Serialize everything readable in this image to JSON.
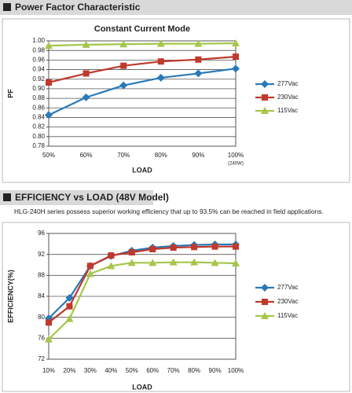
{
  "chart_data": [
    {
      "type": "line",
      "header": "Power Factor Characteristic",
      "title": "Constant Current Mode",
      "x_label": "LOAD",
      "y_label": "PF",
      "annotations": [
        "(240W)"
      ],
      "categories": [
        "50%",
        "60%",
        "70%",
        "80%",
        "90%",
        "100%"
      ],
      "series": [
        {
          "name": "277Vac",
          "color": "#2a7ab9",
          "marker": "diamond",
          "values": [
            0.845,
            0.882,
            0.907,
            0.923,
            0.932,
            0.942
          ]
        },
        {
          "name": "230Vac",
          "color": "#c0392b",
          "marker": "square",
          "values": [
            0.913,
            0.932,
            0.948,
            0.957,
            0.961,
            0.967
          ]
        },
        {
          "name": "115Vac",
          "color": "#a5c64b",
          "marker": "triangle",
          "values": [
            0.99,
            0.992,
            0.993,
            0.994,
            0.994,
            0.995
          ]
        }
      ],
      "ylim": [
        0.78,
        1.0
      ],
      "yticks": [
        {
          "value": 0.78,
          "label": "0.78"
        },
        {
          "value": 0.8,
          "label": "0.80"
        },
        0.82,
        0.84,
        0.86,
        0.88,
        {
          "value": 0.9,
          "label": "0.90"
        },
        0.92,
        0.94,
        0.96,
        0.98,
        {
          "value": 1.0,
          "label": "1.00"
        }
      ],
      "grid": true,
      "legend": "right"
    },
    {
      "type": "line",
      "header": "EFFICIENCY vs LOAD (48V Model)",
      "subtitle": "HLG-240H series possess superior working efficiency that up to 93.5% can be reached in field applications.",
      "x_label": "LOAD",
      "y_label": "EFFICIENCY(%)",
      "categories": [
        "10%",
        "20%",
        "30%",
        "40%",
        "50%",
        "60%",
        "70%",
        "80%",
        "90%",
        "100%"
      ],
      "series": [
        {
          "name": "277Vac",
          "color": "#2a7ab9",
          "marker": "diamond",
          "values": [
            79.8,
            83.7,
            89.8,
            91.7,
            92.7,
            93.3,
            93.6,
            93.8,
            93.9,
            93.9
          ]
        },
        {
          "name": "230Vac",
          "color": "#c0392b",
          "marker": "square",
          "values": [
            79.0,
            82.1,
            89.8,
            91.8,
            92.4,
            93.0,
            93.3,
            93.4,
            93.5,
            93.5
          ]
        },
        {
          "name": "115Vac",
          "color": "#a5c64b",
          "marker": "triangle",
          "values": [
            75.8,
            79.7,
            88.3,
            89.8,
            90.4,
            90.4,
            90.5,
            90.5,
            90.4,
            90.3
          ]
        }
      ],
      "ylim": [
        72,
        96
      ],
      "yticks": [
        72,
        76,
        80,
        84,
        88,
        92,
        96
      ],
      "grid": true,
      "legend": "right"
    }
  ]
}
